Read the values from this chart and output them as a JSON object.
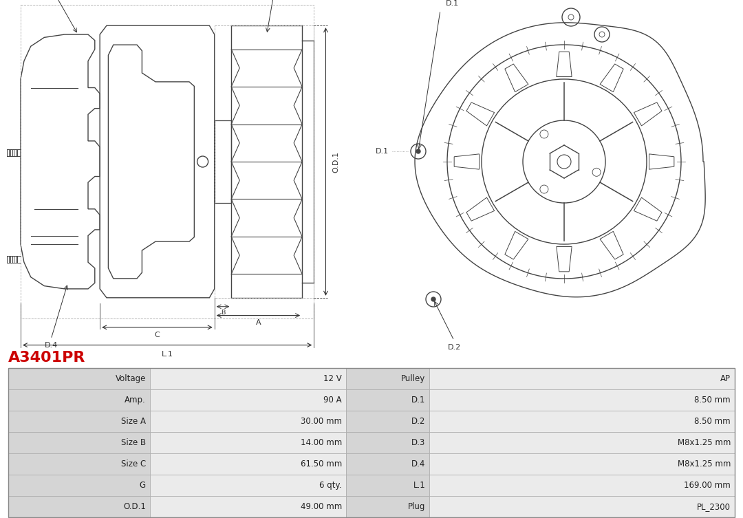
{
  "title": "A3401PR",
  "title_color": "#cc0000",
  "bg_color": "#ffffff",
  "table_rows": [
    [
      "Voltage",
      "12 V",
      "Pulley",
      "AP"
    ],
    [
      "Amp.",
      "90 A",
      "D.1",
      "8.50 mm"
    ],
    [
      "Size A",
      "30.00 mm",
      "D.2",
      "8.50 mm"
    ],
    [
      "Size B",
      "14.00 mm",
      "D.3",
      "M8x1.25 mm"
    ],
    [
      "Size C",
      "61.50 mm",
      "D.4",
      "M8x1.25 mm"
    ],
    [
      "G",
      "6 qty.",
      "L.1",
      "169.00 mm"
    ],
    [
      "O.D.1",
      "49.00 mm",
      "Plug",
      "PL_2300"
    ]
  ],
  "line_color": "#444444",
  "dim_color": "#333333",
  "label_fontsize": 8.0,
  "table_label_bg": "#d8d8d8",
  "table_value_bg": "#ebebeb",
  "table_border": "#aaaaaa",
  "table_text": "#222222"
}
